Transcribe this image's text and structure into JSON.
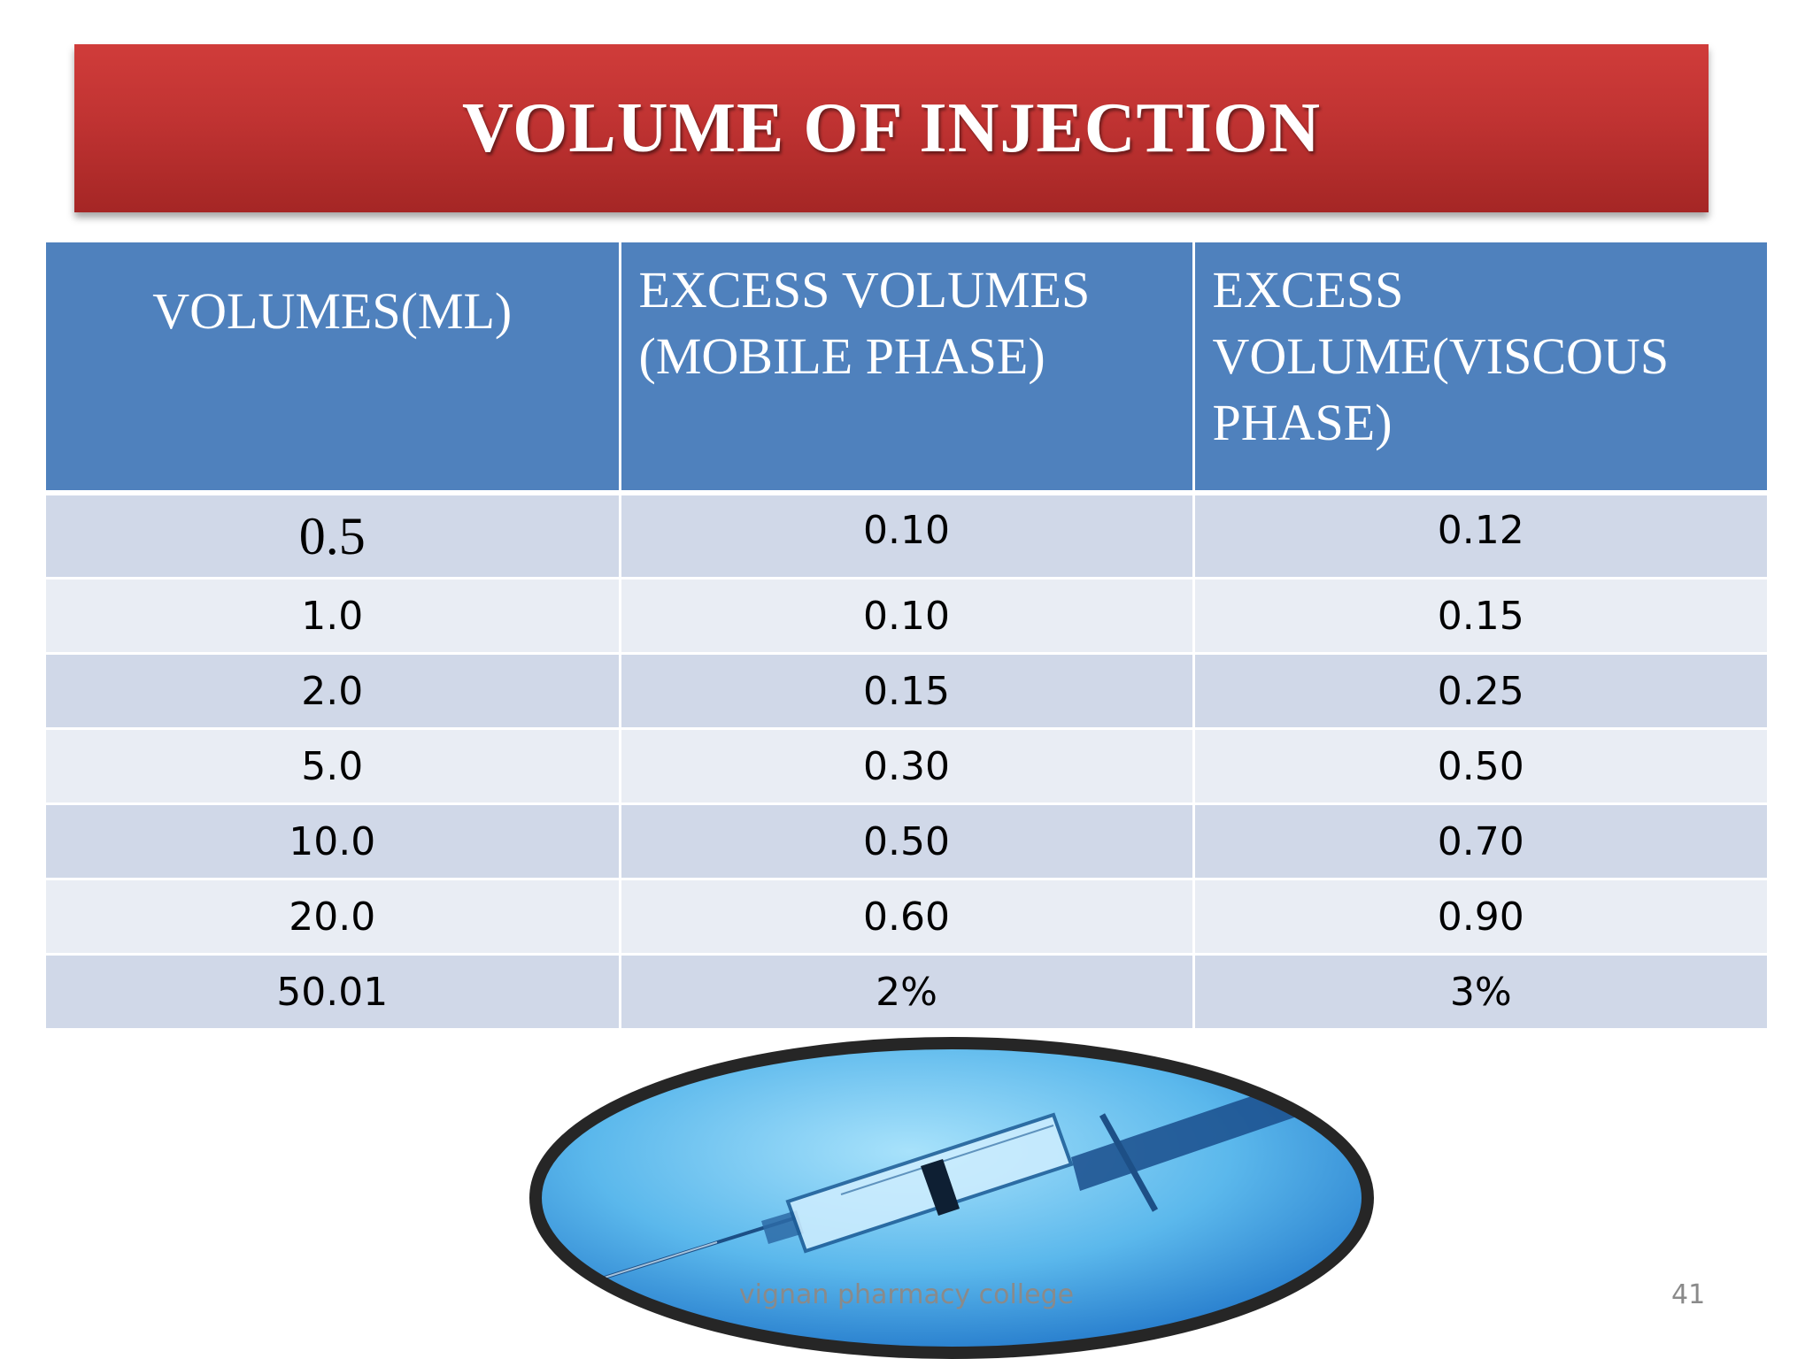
{
  "title": "VOLUME OF INJECTION",
  "table": {
    "headers": [
      "VOLUMES(ML)",
      "EXCESS VOLUMES (MOBILE PHASE)",
      "EXCESS VOLUME(VISCOUS PHASE)"
    ],
    "rows": [
      [
        "0.5",
        "0.10",
        "0.12"
      ],
      [
        "1.0",
        "0.10",
        "0.15"
      ],
      [
        "2.0",
        "0.15",
        "0.25"
      ],
      [
        "5.0",
        "0.30",
        "0.50"
      ],
      [
        "10.0",
        "0.50",
        "0.70"
      ],
      [
        "20.0",
        "0.60",
        "0.90"
      ],
      [
        "50.01",
        "2%",
        "3%"
      ]
    ]
  },
  "footer": {
    "text": "vignan pharmacy college",
    "page_number": "41"
  },
  "colors": {
    "title_red": "#c03332",
    "header_blue": "#4f81bd",
    "row_dark": "#d0d8e8",
    "row_light": "#e9edf4"
  }
}
